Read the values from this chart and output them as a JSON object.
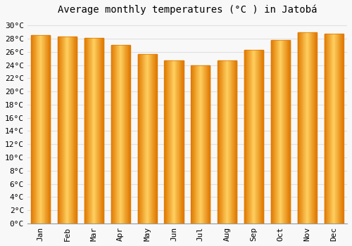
{
  "title": "Average monthly temperatures (°C ) in Jatobá",
  "months": [
    "Jan",
    "Feb",
    "Mar",
    "Apr",
    "May",
    "Jun",
    "Jul",
    "Aug",
    "Sep",
    "Oct",
    "Nov",
    "Dec"
  ],
  "values": [
    28.5,
    28.3,
    28.1,
    27.0,
    25.6,
    24.7,
    24.0,
    24.7,
    26.3,
    27.8,
    29.0,
    28.7
  ],
  "bar_color_light": "#FFD060",
  "bar_color_main": "#FFA500",
  "bar_color_dark": "#E07800",
  "ylim": [
    0,
    31
  ],
  "ytick_step": 2,
  "background_color": "#f8f8f8",
  "grid_color": "#e0e0e0",
  "title_fontsize": 10,
  "tick_fontsize": 8,
  "font_family": "monospace"
}
